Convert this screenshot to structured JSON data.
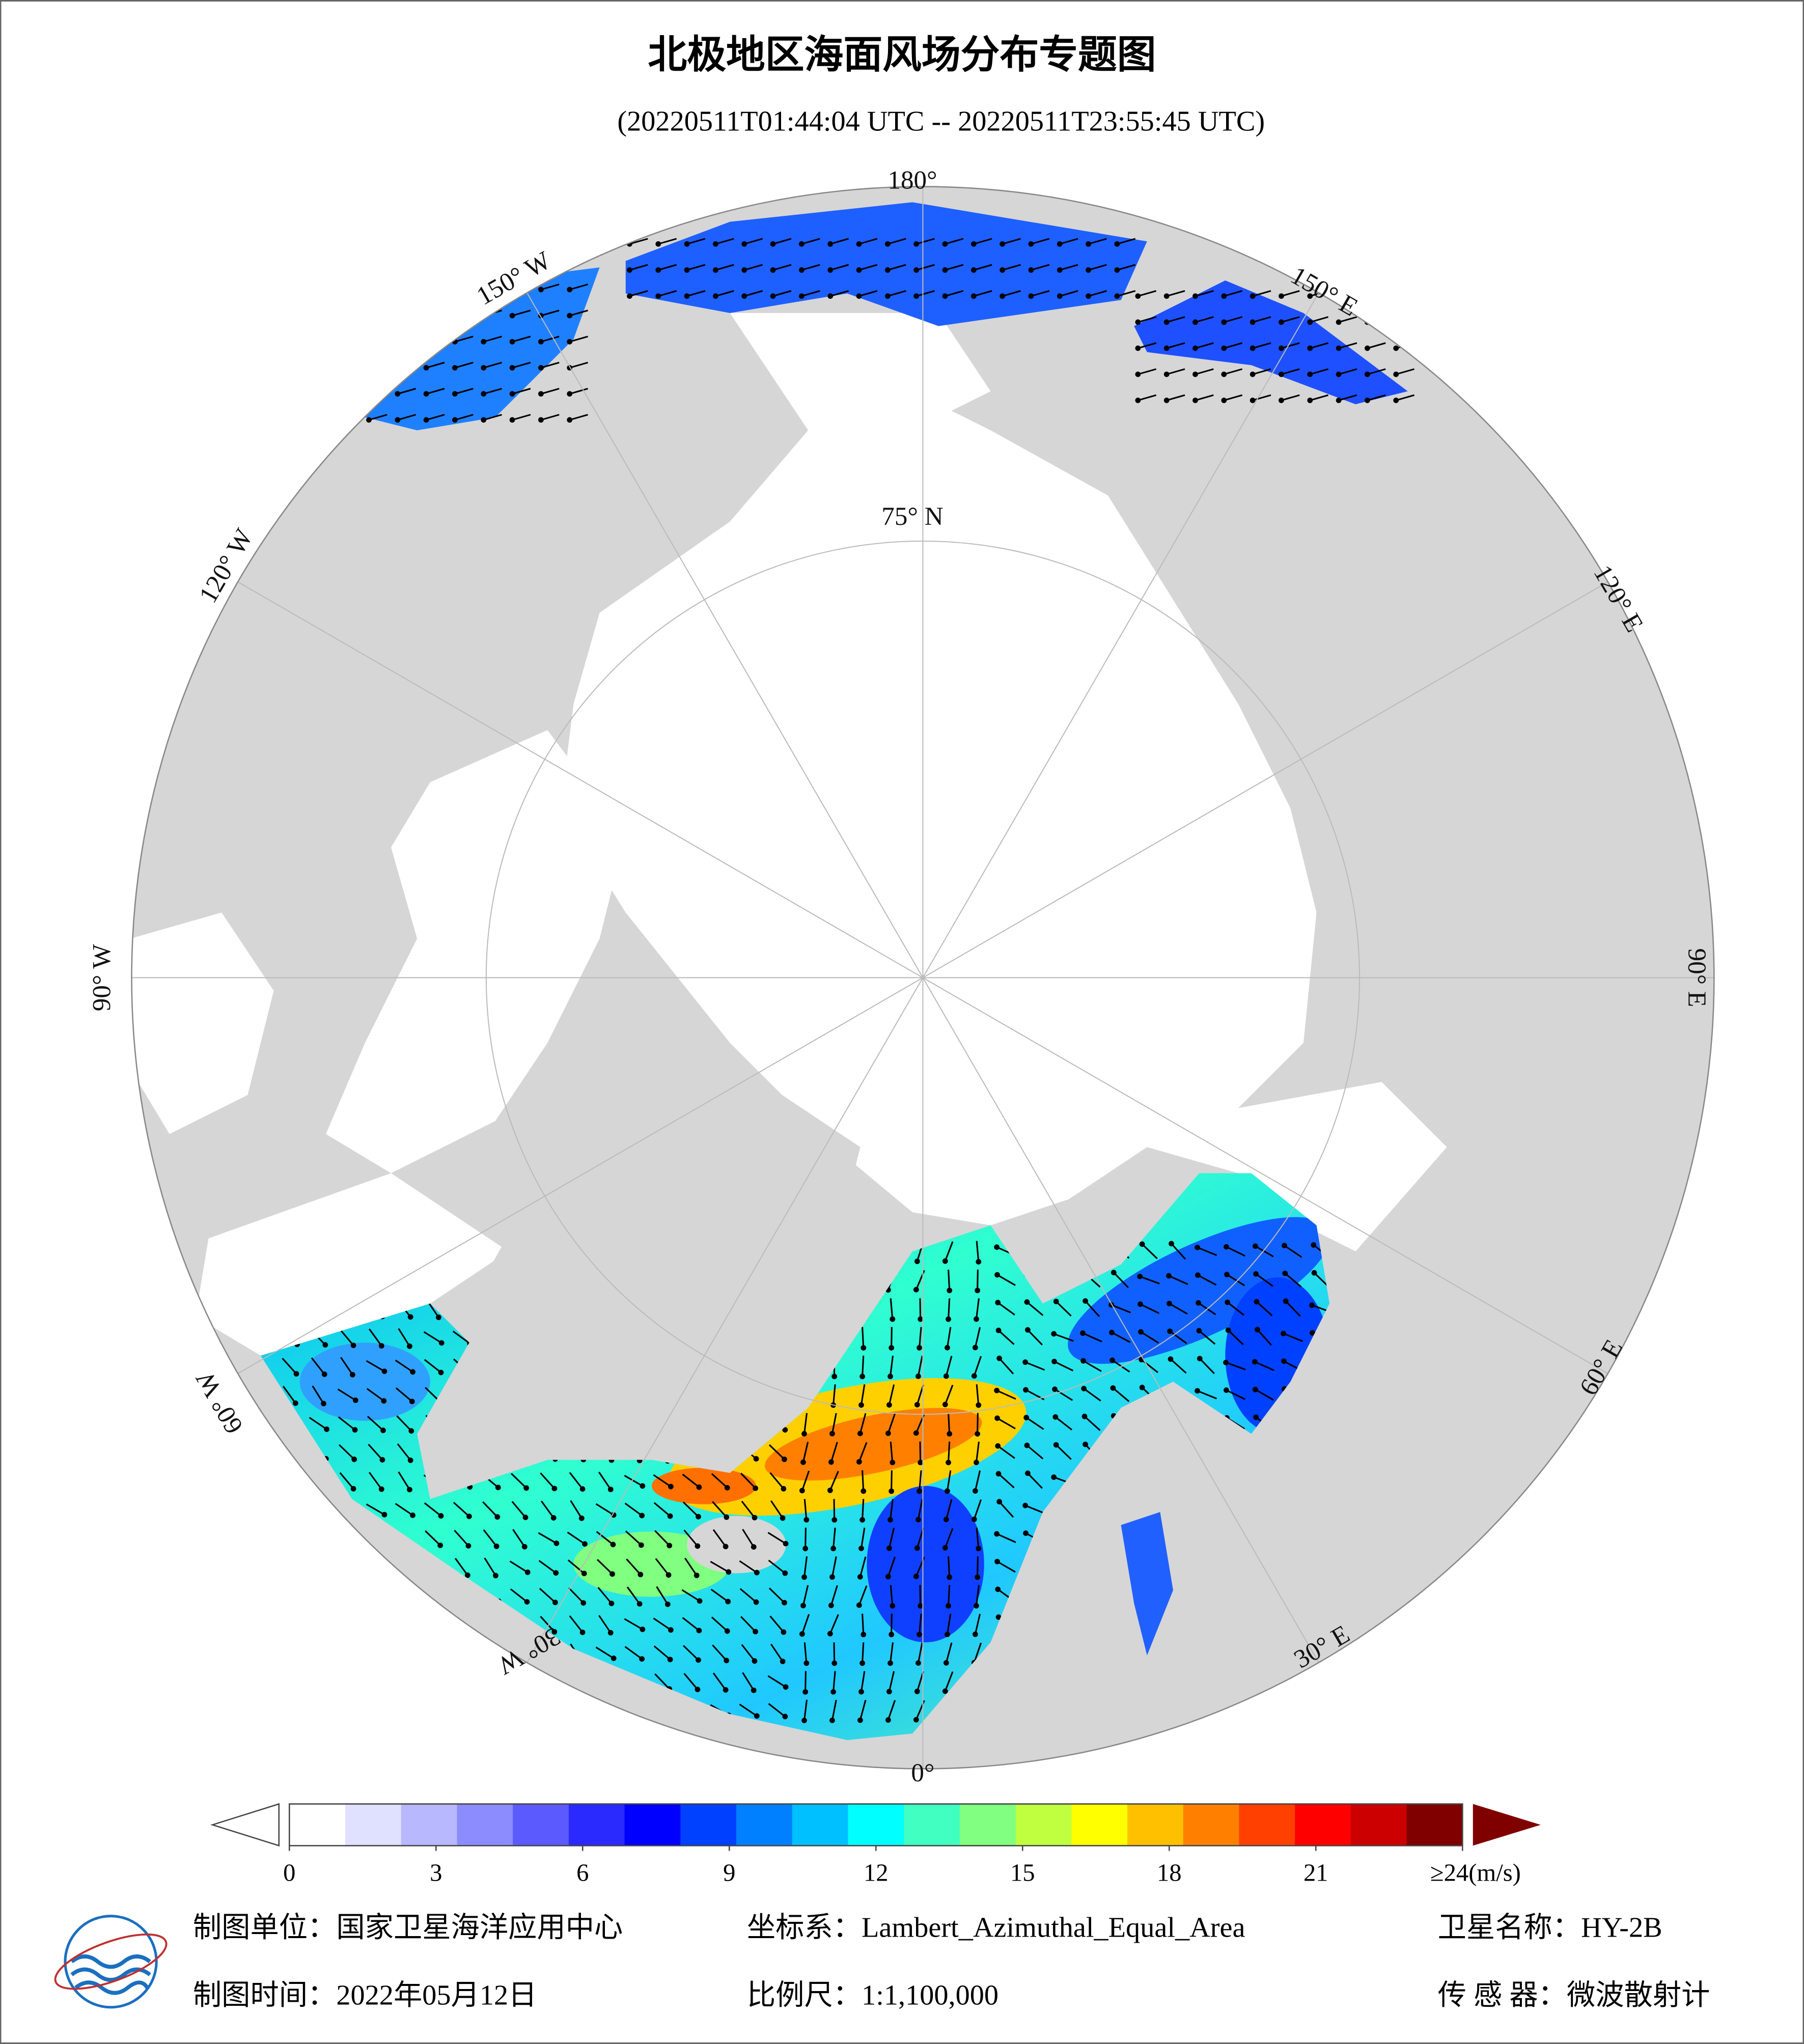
{
  "title": "北极地区海面风场分布专题图",
  "subtitle": "(20220511T01:44:04 UTC -- 20220511T23:55:45 UTC)",
  "map_labels": [
    "180°",
    "150° W",
    "150° E",
    "120° W",
    "120° E",
    "90° W",
    "90° E",
    "60° W",
    "60° E",
    "30° W",
    "30° E",
    "0°",
    "75° N"
  ],
  "colorbar": {
    "range": [
      0,
      24
    ],
    "colors": [
      "#ffffff",
      "#e0e0ff",
      "#b8b8ff",
      "#8c8cff",
      "#5a5aff",
      "#2a2aff",
      "#0000ff",
      "#0040ff",
      "#0080ff",
      "#00c0ff",
      "#00ffff",
      "#40ffc0",
      "#80ff80",
      "#c0ff40",
      "#ffff00",
      "#ffc000",
      "#ff8000",
      "#ff4000",
      "#ff0000",
      "#cc0000",
      "#800000"
    ],
    "ticks": [
      0,
      3,
      6,
      9,
      12,
      15,
      18,
      21,
      {
        "value": 24,
        "label": "≥24(m/s)"
      }
    ]
  },
  "footer": [
    "制图单位：国家卫星海洋应用中心",
    "坐标系：Lambert_Azimuthal_Equal_Area",
    "卫星名称：HY-2B",
    "制图时间：2022年05月12日",
    "比例尺：1:1,100,000",
    "传 感 器：微波散射计"
  ]
}
